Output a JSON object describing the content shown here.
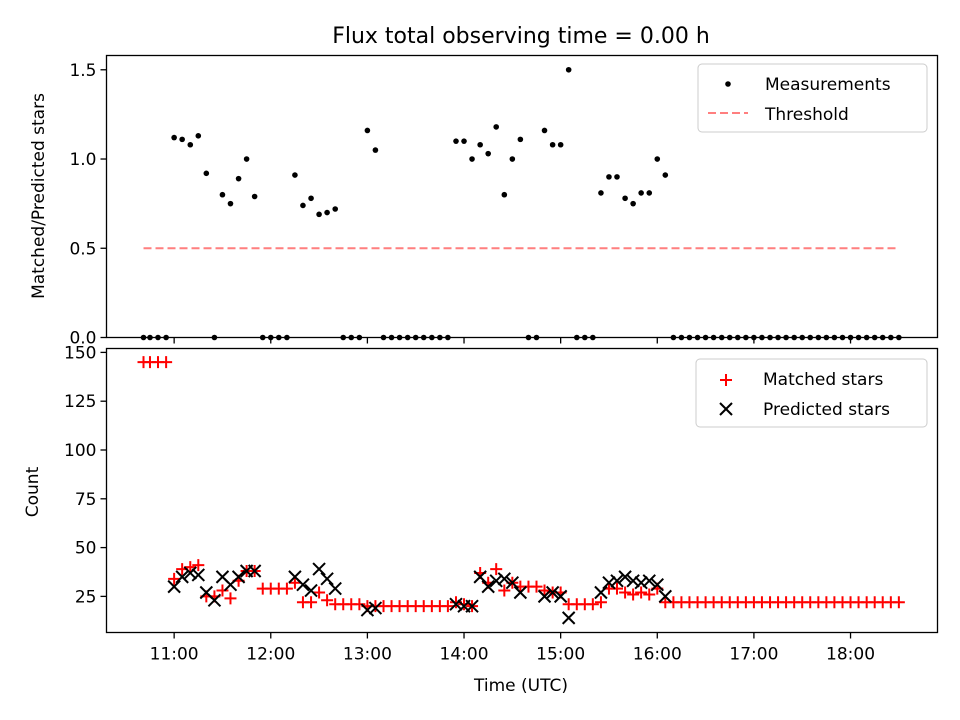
{
  "figure": {
    "title": "Flux total observing time = 0.00 h"
  },
  "chart_data": [
    {
      "type": "scatter",
      "ylabel": "Matched/Predicted stars",
      "ylim": [
        0,
        1.58
      ],
      "yticks": [
        0.0,
        0.5,
        1.0,
        1.5
      ],
      "ytick_labels": [
        "0.0",
        "0.5",
        "1.0",
        "1.5"
      ],
      "xlim": [
        10.3,
        18.9
      ],
      "legend_position": "upper right",
      "series": [
        {
          "name": "Measurements",
          "kind": "points",
          "color": "#000000",
          "x": [
            10.683,
            10.75,
            10.833,
            10.917,
            11.0,
            11.083,
            11.167,
            11.25,
            11.333,
            11.417,
            11.5,
            11.583,
            11.667,
            11.75,
            11.833,
            11.917,
            12.0,
            12.083,
            12.167,
            12.25,
            12.333,
            12.417,
            12.5,
            12.583,
            12.667,
            12.75,
            12.833,
            12.917,
            13.0,
            13.083,
            13.167,
            13.25,
            13.333,
            13.417,
            13.5,
            13.583,
            13.667,
            13.75,
            13.833,
            13.917,
            14.0,
            14.083,
            14.167,
            14.25,
            14.333,
            14.417,
            14.5,
            14.583,
            14.667,
            14.75,
            14.833,
            14.917,
            15.0,
            15.083,
            15.167,
            15.25,
            15.333,
            15.417,
            15.5,
            15.583,
            15.667,
            15.75,
            15.833,
            15.917,
            16.0,
            16.083,
            16.167,
            16.25,
            16.333,
            16.417,
            16.5,
            16.583,
            16.667,
            16.75,
            16.833,
            16.917,
            17.0,
            17.083,
            17.167,
            17.25,
            17.333,
            17.417,
            17.5,
            17.583,
            17.667,
            17.75,
            17.833,
            17.917,
            18.0,
            18.083,
            18.167,
            18.25,
            18.333,
            18.417,
            18.5
          ],
          "y": [
            0,
            0,
            0,
            0,
            1.12,
            1.11,
            1.08,
            1.13,
            0.92,
            0,
            0.8,
            0.75,
            0.89,
            1.0,
            0.79,
            0,
            0,
            0,
            0,
            0.91,
            0.74,
            0.78,
            0.69,
            0.7,
            0.72,
            0,
            0,
            0,
            1.16,
            1.05,
            0,
            0,
            0,
            0,
            0,
            0,
            0,
            0,
            0,
            1.1,
            1.1,
            1.0,
            1.08,
            1.03,
            1.18,
            0.8,
            1.0,
            1.11,
            0,
            0,
            1.16,
            1.08,
            1.08,
            1.5,
            0,
            0,
            0,
            0.81,
            0.9,
            0.9,
            0.78,
            0.75,
            0.81,
            0.81,
            1.0,
            0.91,
            0,
            0,
            0,
            0,
            0,
            0,
            0,
            0,
            0,
            0,
            0,
            0,
            0,
            0,
            0,
            0,
            0,
            0,
            0,
            0,
            0,
            0,
            0,
            0,
            0,
            0,
            0,
            0,
            0
          ]
        },
        {
          "name": "Threshold",
          "kind": "dashed-line",
          "color": "#ff7f7f",
          "x": [
            10.683,
            18.5
          ],
          "y": [
            0.5,
            0.5
          ]
        }
      ]
    },
    {
      "type": "scatter",
      "xlabel": "Time (UTC)",
      "ylabel": "Count",
      "ylim": [
        6.5,
        152
      ],
      "yticks": [
        25,
        50,
        75,
        100,
        125,
        150
      ],
      "ytick_labels": [
        "25",
        "50",
        "75",
        "100",
        "125",
        "150"
      ],
      "xlim": [
        10.3,
        18.9
      ],
      "xticks": [
        11,
        12,
        13,
        14,
        15,
        16,
        17,
        18
      ],
      "xtick_labels": [
        "11:00",
        "12:00",
        "13:00",
        "14:00",
        "15:00",
        "16:00",
        "17:00",
        "18:00"
      ],
      "legend_position": "upper right",
      "series": [
        {
          "name": "Matched stars",
          "kind": "plus",
          "color": "#ff0000",
          "x": [
            10.683,
            10.75,
            10.833,
            10.917,
            11.0,
            11.083,
            11.167,
            11.25,
            11.333,
            11.417,
            11.5,
            11.583,
            11.667,
            11.75,
            11.833,
            11.917,
            12.0,
            12.083,
            12.167,
            12.25,
            12.333,
            12.417,
            12.5,
            12.583,
            12.667,
            12.75,
            12.833,
            12.917,
            13.0,
            13.083,
            13.167,
            13.25,
            13.333,
            13.417,
            13.5,
            13.583,
            13.667,
            13.75,
            13.833,
            13.917,
            14.0,
            14.083,
            14.167,
            14.25,
            14.333,
            14.417,
            14.5,
            14.583,
            14.667,
            14.75,
            14.833,
            14.917,
            15.0,
            15.083,
            15.167,
            15.25,
            15.333,
            15.417,
            15.5,
            15.583,
            15.667,
            15.75,
            15.833,
            15.917,
            16.0,
            16.083,
            16.167,
            16.25,
            16.333,
            16.417,
            16.5,
            16.583,
            16.667,
            16.75,
            16.833,
            16.917,
            17.0,
            17.083,
            17.167,
            17.25,
            17.333,
            17.417,
            17.5,
            17.583,
            17.667,
            17.75,
            17.833,
            17.917,
            18.0,
            18.083,
            18.167,
            18.25,
            18.333,
            18.417,
            18.5
          ],
          "y": [
            145,
            145,
            145,
            145,
            34,
            39,
            40,
            41,
            25,
            25,
            28,
            24,
            33,
            38,
            38,
            29,
            29,
            29,
            29,
            32,
            22,
            22,
            27,
            23,
            21,
            21,
            21,
            21,
            20,
            20,
            20,
            20,
            20,
            20,
            20,
            20,
            20,
            20,
            20,
            22,
            21,
            20,
            37,
            32,
            39,
            28,
            32,
            30,
            30,
            30,
            28,
            27,
            27,
            21,
            21,
            21,
            21,
            22,
            29,
            29,
            27,
            26,
            27,
            26,
            29,
            22,
            22,
            22,
            22,
            22,
            22,
            22,
            22,
            22,
            22,
            22,
            22,
            22,
            22,
            22,
            22,
            22,
            22,
            22,
            22,
            22,
            22,
            22,
            22,
            22,
            22,
            22,
            22,
            22,
            22
          ]
        },
        {
          "name": "Predicted stars",
          "kind": "cross",
          "color": "#000000",
          "x": [
            11.0,
            11.083,
            11.167,
            11.25,
            11.333,
            11.417,
            11.5,
            11.583,
            11.667,
            11.75,
            11.833,
            12.25,
            12.333,
            12.417,
            12.5,
            12.583,
            12.667,
            13.0,
            13.083,
            13.917,
            14.0,
            14.083,
            14.167,
            14.25,
            14.333,
            14.417,
            14.5,
            14.583,
            14.833,
            14.917,
            15.0,
            15.083,
            15.417,
            15.5,
            15.583,
            15.667,
            15.75,
            15.833,
            15.917,
            16.0,
            16.083
          ],
          "y": [
            30,
            35,
            37,
            36,
            27,
            23,
            35,
            31,
            35,
            38,
            38,
            35,
            31,
            28,
            39,
            34,
            29,
            18,
            19,
            21,
            20,
            20,
            35,
            30,
            33,
            34,
            32,
            27,
            25,
            27,
            25,
            14,
            27,
            32,
            33,
            35,
            33,
            32,
            33,
            31,
            25
          ]
        }
      ]
    }
  ]
}
